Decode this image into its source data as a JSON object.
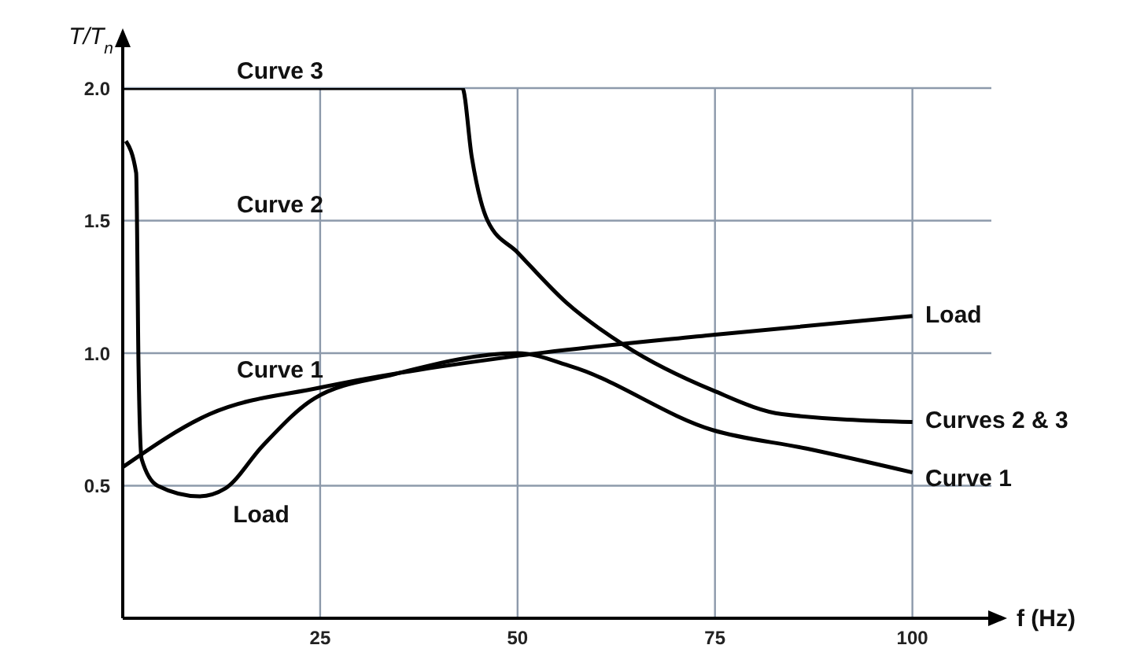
{
  "chart_data": {
    "type": "line",
    "xlabel": "f (Hz)",
    "ylabel": "T/T$_{n}$",
    "xlim": [
      0,
      110
    ],
    "ylim": [
      0,
      2
    ],
    "xticks": [
      25,
      50,
      75,
      100
    ],
    "yticks": [
      0.5,
      {
        "value": 1,
        "label": "1.0"
      },
      1.5,
      {
        "value": 2,
        "label": "2.0"
      }
    ],
    "grid": true,
    "marker": "none",
    "line_style": "solid",
    "series": [
      {
        "color": "#000000",
        "x": [
          0,
          43,
          44.2,
          46.2,
          50,
          56.2,
          63.5,
          74.7,
          83.5,
          100
        ],
        "values": [
          2.0,
          2.0,
          1.74,
          1.5,
          1.38,
          1.19,
          1.03,
          0.86,
          0.77,
          0.74
        ]
      },
      {
        "color": "#000000",
        "x": [
          0,
          11,
          25,
          50,
          75,
          100
        ],
        "values": [
          0.57,
          0.77,
          0.87,
          0.99,
          1.07,
          1.14
        ]
      },
      {
        "color": "#000000",
        "x": [
          0.4,
          1.7,
          2.0,
          2.4,
          4.4,
          9.7,
          13,
          17.7,
          24.3,
          34.3,
          50,
          56.8,
          74.7,
          86.6,
          100
        ],
        "values": [
          1.8,
          1.68,
          0.95,
          0.6,
          0.5,
          0.46,
          0.49,
          0.65,
          0.83,
          0.92,
          1.0,
          0.95,
          0.71,
          0.64,
          0.55
        ]
      }
    ],
    "annotations": [
      "Curve 3",
      "Curve 2",
      "Curve 1",
      "Load",
      "Load",
      "Curves 2 & 3",
      "Curve 1"
    ]
  }
}
